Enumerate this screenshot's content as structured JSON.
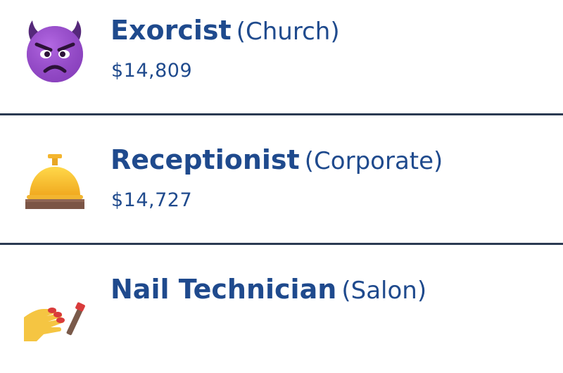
{
  "jobs": [
    {
      "title": "Exorcist",
      "category": "(Church)",
      "salary": "$14,809",
      "icon": "angry-devil-icon"
    },
    {
      "title": "Receptionist",
      "category": "(Corporate)",
      "salary": "$14,727",
      "icon": "bellhop-bell-icon"
    },
    {
      "title": "Nail Technician",
      "category": "(Salon)",
      "salary": "",
      "icon": "nail-polish-icon"
    }
  ],
  "colors": {
    "text": "#1f4a8d",
    "divider": "#2b3a52",
    "background": "#ffffff"
  }
}
